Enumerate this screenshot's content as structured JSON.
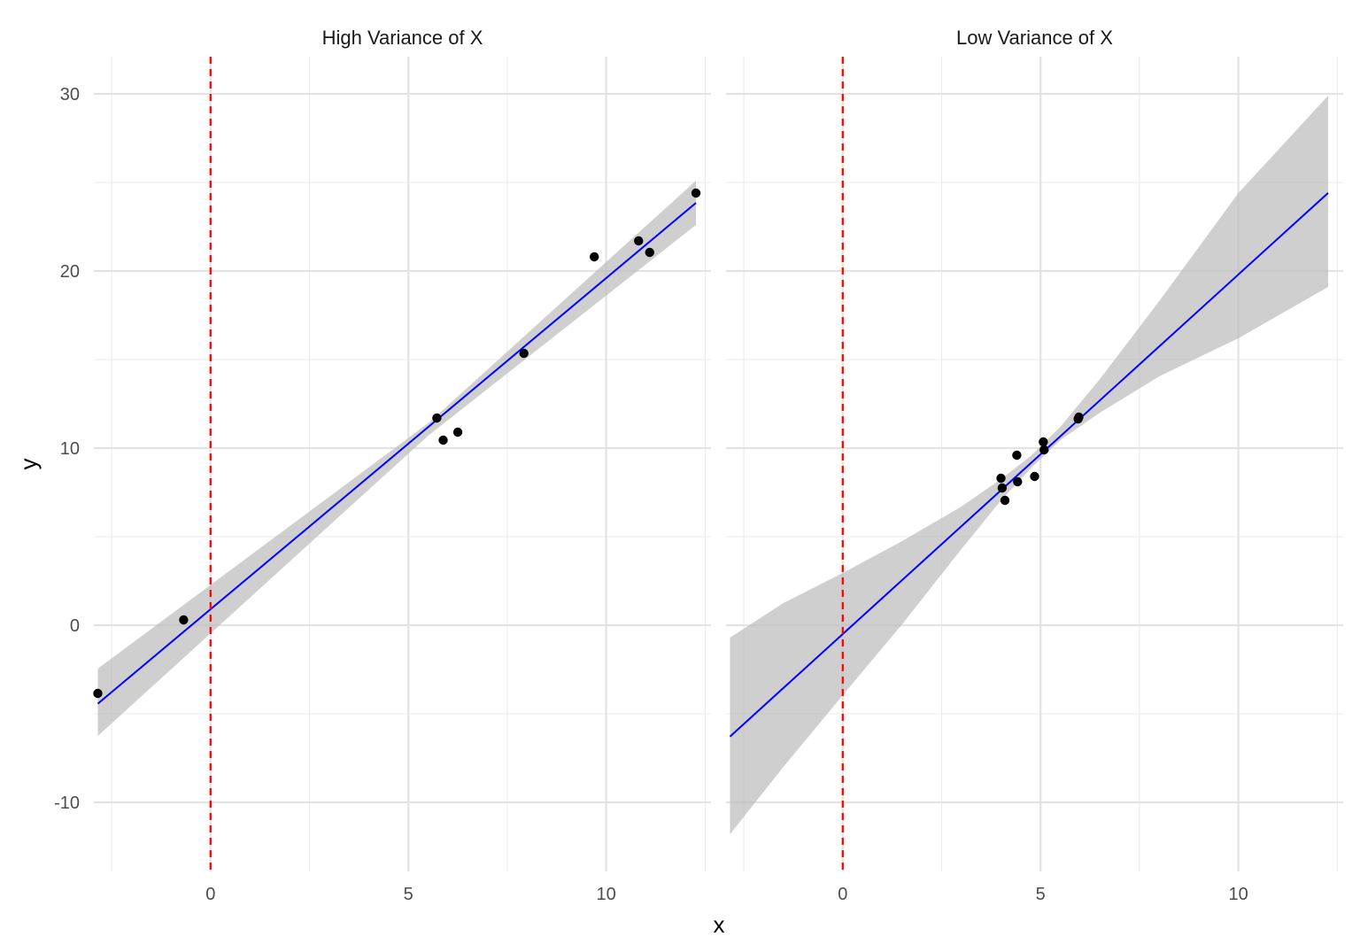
{
  "chart_data": {
    "type": "scatter",
    "xlabel": "x",
    "ylabel": "y",
    "xlim": [
      -2.95,
      12.65
    ],
    "ylim": [
      -13.9,
      32.1
    ],
    "x_ticks": [
      0,
      5,
      10
    ],
    "x_tick_labels": [
      "0",
      "5",
      "10"
    ],
    "y_ticks": [
      -10,
      0,
      10,
      20,
      30
    ],
    "y_tick_labels": [
      "-10",
      "0",
      "10",
      "20",
      "30"
    ],
    "x_minor_ticks": [
      -2.5,
      2.5,
      7.5,
      12.5
    ],
    "y_minor_ticks": [
      -5,
      5,
      15,
      25
    ],
    "grid": true,
    "vline": {
      "x": 0,
      "color": "#ff0000",
      "style": "dashed"
    },
    "fit_color": "#0000ff",
    "band_color": "#bdbdbd",
    "point_color": "#000000",
    "panels": [
      {
        "title": "High Variance of X",
        "points": [
          {
            "x": -2.85,
            "y": -3.85
          },
          {
            "x": -0.68,
            "y": 0.3
          },
          {
            "x": 5.72,
            "y": 11.7
          },
          {
            "x": 5.88,
            "y": 10.45
          },
          {
            "x": 6.25,
            "y": 10.9
          },
          {
            "x": 7.92,
            "y": 15.35
          },
          {
            "x": 9.7,
            "y": 20.8
          },
          {
            "x": 10.82,
            "y": 21.7
          },
          {
            "x": 11.1,
            "y": 21.05
          },
          {
            "x": 12.27,
            "y": 24.4
          }
        ],
        "fit": {
          "x_start": -2.85,
          "x_end": 12.27,
          "intercept": 0.9,
          "slope": 1.87
        },
        "band": [
          {
            "x": -2.85,
            "lower": -6.25,
            "upper": -2.45
          },
          {
            "x": 5.5,
            "lower": 10.7,
            "upper": 11.4
          },
          {
            "x": 12.27,
            "lower": 22.6,
            "upper": 25.1
          }
        ]
      },
      {
        "title": "Low Variance of X",
        "points": [
          {
            "x": 4.0,
            "y": 8.3
          },
          {
            "x": 4.03,
            "y": 7.75
          },
          {
            "x": 4.1,
            "y": 7.05
          },
          {
            "x": 4.4,
            "y": 9.6
          },
          {
            "x": 4.42,
            "y": 8.1
          },
          {
            "x": 4.85,
            "y": 8.4
          },
          {
            "x": 5.07,
            "y": 10.35
          },
          {
            "x": 5.09,
            "y": 9.9
          },
          {
            "x": 5.95,
            "y": 11.65
          },
          {
            "x": 5.97,
            "y": 11.75
          }
        ],
        "fit": {
          "x_start": -2.85,
          "x_end": 12.27,
          "intercept": -0.5,
          "slope": 2.03
        },
        "band": [
          {
            "x": -2.85,
            "lower": -11.8,
            "upper": -0.7
          },
          {
            "x": -1.5,
            "lower": -8.0,
            "upper": 1.25
          },
          {
            "x": 0,
            "lower": -3.95,
            "upper": 2.95
          },
          {
            "x": 1.5,
            "lower": 0.05,
            "upper": 4.75
          },
          {
            "x": 3.0,
            "lower": 4.3,
            "upper": 6.7
          },
          {
            "x": 4.0,
            "lower": 7.05,
            "upper": 8.25
          },
          {
            "x": 4.75,
            "lower": 8.85,
            "upper": 9.55
          },
          {
            "x": 5.5,
            "lower": 10.45,
            "upper": 11.2
          },
          {
            "x": 6.5,
            "lower": 12.0,
            "upper": 13.9
          },
          {
            "x": 8.0,
            "lower": 14.05,
            "upper": 18.3
          },
          {
            "x": 10.0,
            "lower": 16.2,
            "upper": 24.4
          },
          {
            "x": 12.27,
            "lower": 19.1,
            "upper": 29.9
          }
        ]
      }
    ]
  }
}
